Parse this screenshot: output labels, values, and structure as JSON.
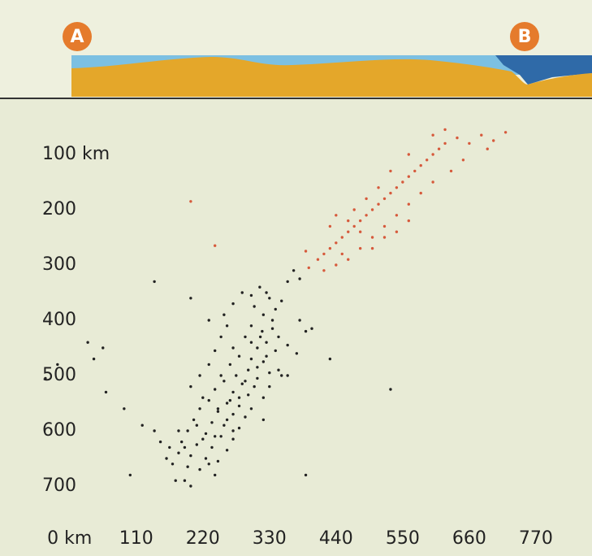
{
  "chart_data": {
    "type": "scatter",
    "profile_labels": [
      "A",
      "B"
    ],
    "xlim": [
      -60,
      860
    ],
    "ylim": [
      0,
      800
    ],
    "y_inverted": true,
    "grid": false,
    "xticks": [
      {
        "value": 0,
        "label": "0 km"
      },
      110,
      220,
      330,
      440,
      550,
      660,
      770
    ],
    "yticks": [
      {
        "value": 100,
        "label": "100 km"
      },
      200,
      300,
      400,
      500,
      600,
      700
    ],
    "series": [
      {
        "color": "#d65a3c",
        "x": [
          395,
          410,
          420,
          430,
          440,
          450,
          460,
          470,
          480,
          490,
          500,
          510,
          520,
          530,
          540,
          550,
          560,
          570,
          580,
          590,
          600,
          610,
          620,
          640,
          660,
          680,
          700,
          720,
          690,
          650,
          630,
          600,
          580,
          560,
          540,
          520,
          500,
          480,
          460,
          440,
          420,
          470,
          490,
          510,
          460,
          480,
          500,
          520,
          540,
          450,
          430,
          560,
          440,
          530,
          560,
          600,
          620,
          200,
          240,
          390
        ],
        "values": [
          305,
          290,
          280,
          270,
          260,
          250,
          240,
          230,
          220,
          210,
          200,
          190,
          180,
          170,
          160,
          150,
          140,
          130,
          120,
          110,
          100,
          90,
          80,
          70,
          80,
          65,
          75,
          60,
          90,
          110,
          130,
          150,
          170,
          190,
          210,
          230,
          250,
          270,
          290,
          300,
          310,
          200,
          180,
          160,
          220,
          240,
          270,
          250,
          240,
          280,
          230,
          220,
          210,
          130,
          100,
          65,
          55,
          185,
          265,
          275
        ]
      },
      {
        "color": "#222222",
        "x": [
          314,
          330,
          305,
          320,
          335,
          300,
          318,
          290,
          325,
          310,
          340,
          280,
          300,
          320,
          265,
          295,
          330,
          275,
          310,
          350,
          255,
          285,
          305,
          240,
          270,
          295,
          320,
          230,
          260,
          280,
          215,
          245,
          270,
          290,
          205,
          235,
          255,
          280,
          195,
          225,
          250,
          270,
          185,
          210,
          235,
          260,
          180,
          200,
          225,
          245,
          170,
          195,
          215,
          240,
          175,
          200,
          160,
          150,
          140,
          120,
          100,
          90,
          60,
          -40,
          40,
          55,
          30,
          -20,
          200,
          215,
          230,
          240,
          250,
          260,
          255,
          270,
          285,
          300,
          345,
          360,
          375,
          390,
          380,
          400,
          340,
          350,
          325,
          230,
          200,
          140,
          530,
          390,
          430,
          245,
          260,
          210,
          220,
          190,
          230,
          265,
          290,
          310,
          325,
          280,
          300,
          320,
          270,
          330,
          345,
          360,
          220,
          180,
          165,
          190,
          240,
          250,
          270,
          300,
          315,
          335,
          360,
          380,
          370
        ],
        "values": [
          340,
          360,
          375,
          390,
          400,
          410,
          420,
          430,
          440,
          450,
          455,
          465,
          470,
          475,
          480,
          490,
          495,
          500,
          505,
          500,
          510,
          515,
          520,
          525,
          530,
          535,
          540,
          545,
          550,
          555,
          560,
          565,
          570,
          575,
          580,
          585,
          590,
          595,
          600,
          605,
          610,
          615,
          620,
          625,
          630,
          635,
          640,
          645,
          650,
          655,
          660,
          665,
          670,
          680,
          690,
          700,
          650,
          620,
          600,
          590,
          680,
          560,
          530,
          505,
          470,
          450,
          440,
          480,
          520,
          500,
          480,
          455,
          430,
          410,
          390,
          370,
          350,
          355,
          430,
          445,
          460,
          420,
          400,
          415,
          380,
          365,
          350,
          400,
          360,
          330,
          525,
          680,
          470,
          560,
          580,
          590,
          615,
          630,
          660,
          545,
          510,
          485,
          465,
          540,
          560,
          580,
          600,
          520,
          490,
          500,
          540,
          600,
          630,
          690,
          610,
          500,
          450,
          440,
          430,
          415,
          330,
          325,
          310
        ]
      }
    ]
  }
}
